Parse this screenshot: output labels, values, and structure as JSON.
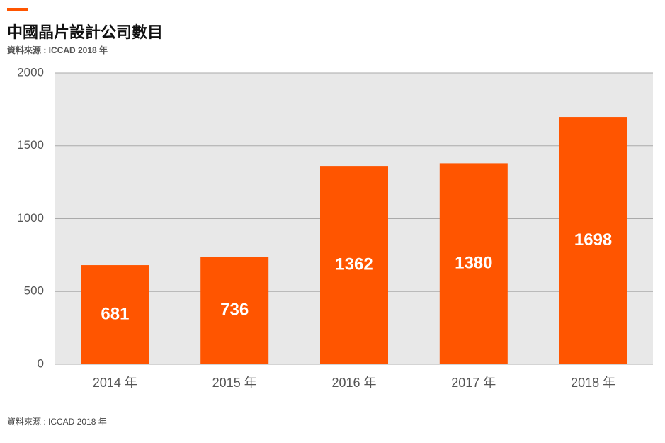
{
  "chart_data": {
    "type": "bar",
    "title": "中國晶片設計公司數目",
    "source": "資料來源 : ICCAD 2018 年",
    "footer": "資料來源 : ICCAD 2018 年",
    "categories": [
      "2014 年",
      "2015 年",
      "2016 年",
      "2017 年",
      "2018 年"
    ],
    "values": [
      681,
      736,
      1362,
      1380,
      1698
    ],
    "color": "#ff5500",
    "ylim": [
      0,
      2000
    ],
    "yticks": [
      0,
      500,
      1000,
      1500,
      2000
    ],
    "grid": true
  }
}
